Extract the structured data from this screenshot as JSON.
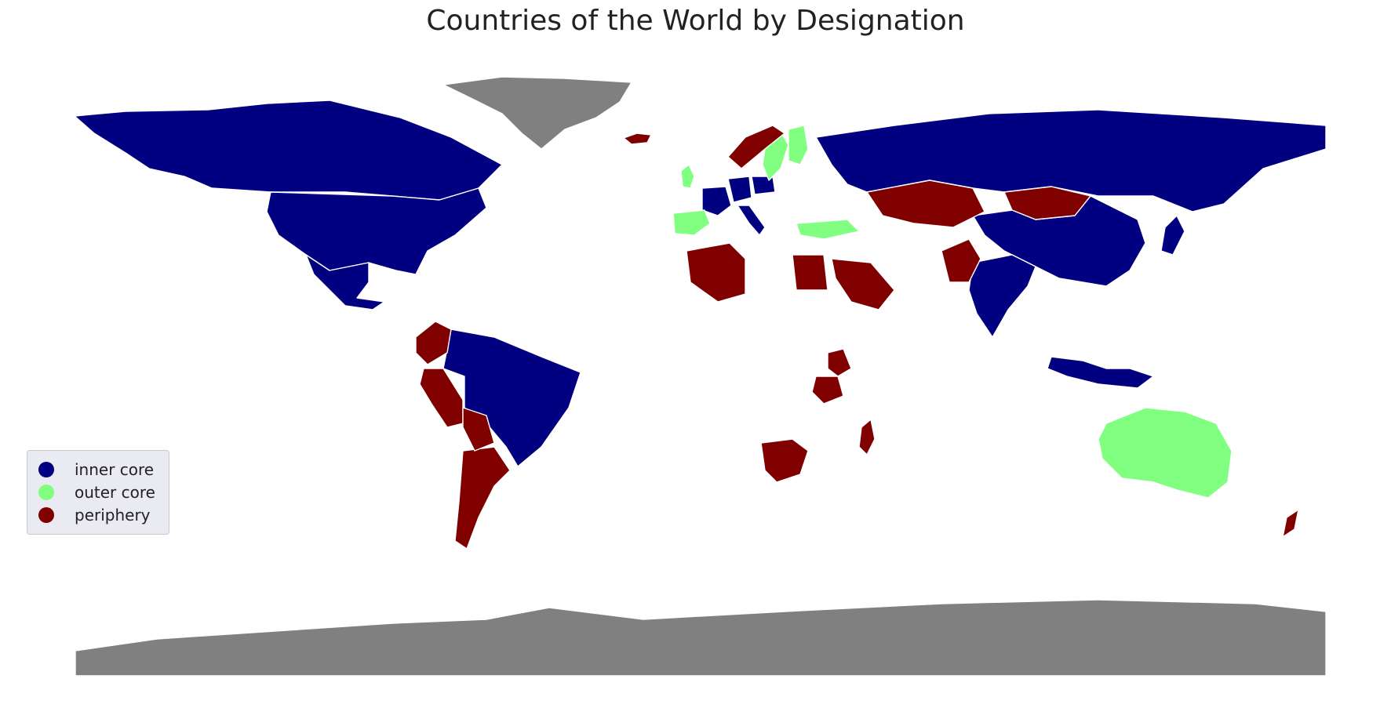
{
  "title": "Countries of the World by Designation",
  "colors": {
    "inner_core": "#000080",
    "outer_core": "#80ff80",
    "periphery": "#800000",
    "unclassified": "#808080"
  },
  "legend": [
    {
      "label": "inner core",
      "color": "#000080"
    },
    {
      "label": "outer core",
      "color": "#80ff80"
    },
    {
      "label": "periphery",
      "color": "#800000"
    }
  ],
  "legend_position": "center-left",
  "chart_data": {
    "type": "choropleth",
    "title": "Countries of the World by Designation",
    "categories": [
      "inner core",
      "outer core",
      "periphery"
    ],
    "regions": [
      {
        "region": "Canada",
        "category": "inner core"
      },
      {
        "region": "United States",
        "category": "inner core"
      },
      {
        "region": "Mexico",
        "category": "inner core"
      },
      {
        "region": "Brazil",
        "category": "inner core"
      },
      {
        "region": "Russia",
        "category": "inner core"
      },
      {
        "region": "China",
        "category": "inner core"
      },
      {
        "region": "India",
        "category": "inner core"
      },
      {
        "region": "Japan",
        "category": "inner core"
      },
      {
        "region": "Indonesia",
        "category": "inner core"
      },
      {
        "region": "France",
        "category": "inner core"
      },
      {
        "region": "Germany",
        "category": "inner core"
      },
      {
        "region": "Italy",
        "category": "inner core"
      },
      {
        "region": "Poland",
        "category": "inner core"
      },
      {
        "region": "United Kingdom",
        "category": "outer core"
      },
      {
        "region": "Sweden",
        "category": "outer core"
      },
      {
        "region": "Finland",
        "category": "outer core"
      },
      {
        "region": "Spain",
        "category": "outer core"
      },
      {
        "region": "Turkey",
        "category": "outer core"
      },
      {
        "region": "Australia",
        "category": "outer core"
      },
      {
        "region": "Argentina",
        "category": "periphery"
      },
      {
        "region": "Peru",
        "category": "periphery"
      },
      {
        "region": "Colombia",
        "category": "periphery"
      },
      {
        "region": "Bolivia",
        "category": "periphery"
      },
      {
        "region": "Norway",
        "category": "periphery"
      },
      {
        "region": "Iceland",
        "category": "periphery"
      },
      {
        "region": "Algeria",
        "category": "periphery"
      },
      {
        "region": "Egypt",
        "category": "periphery"
      },
      {
        "region": "Saudi Arabia",
        "category": "periphery"
      },
      {
        "region": "Kazakhstan",
        "category": "periphery"
      },
      {
        "region": "Mongolia",
        "category": "periphery"
      },
      {
        "region": "Pakistan",
        "category": "periphery"
      },
      {
        "region": "Kenya",
        "category": "periphery"
      },
      {
        "region": "Tanzania",
        "category": "periphery"
      },
      {
        "region": "South Africa",
        "category": "periphery"
      },
      {
        "region": "Madagascar",
        "category": "periphery"
      },
      {
        "region": "New Zealand",
        "category": "periphery"
      },
      {
        "region": "Greenland",
        "category": "unclassified"
      },
      {
        "region": "Antarctica",
        "category": "unclassified"
      }
    ]
  }
}
